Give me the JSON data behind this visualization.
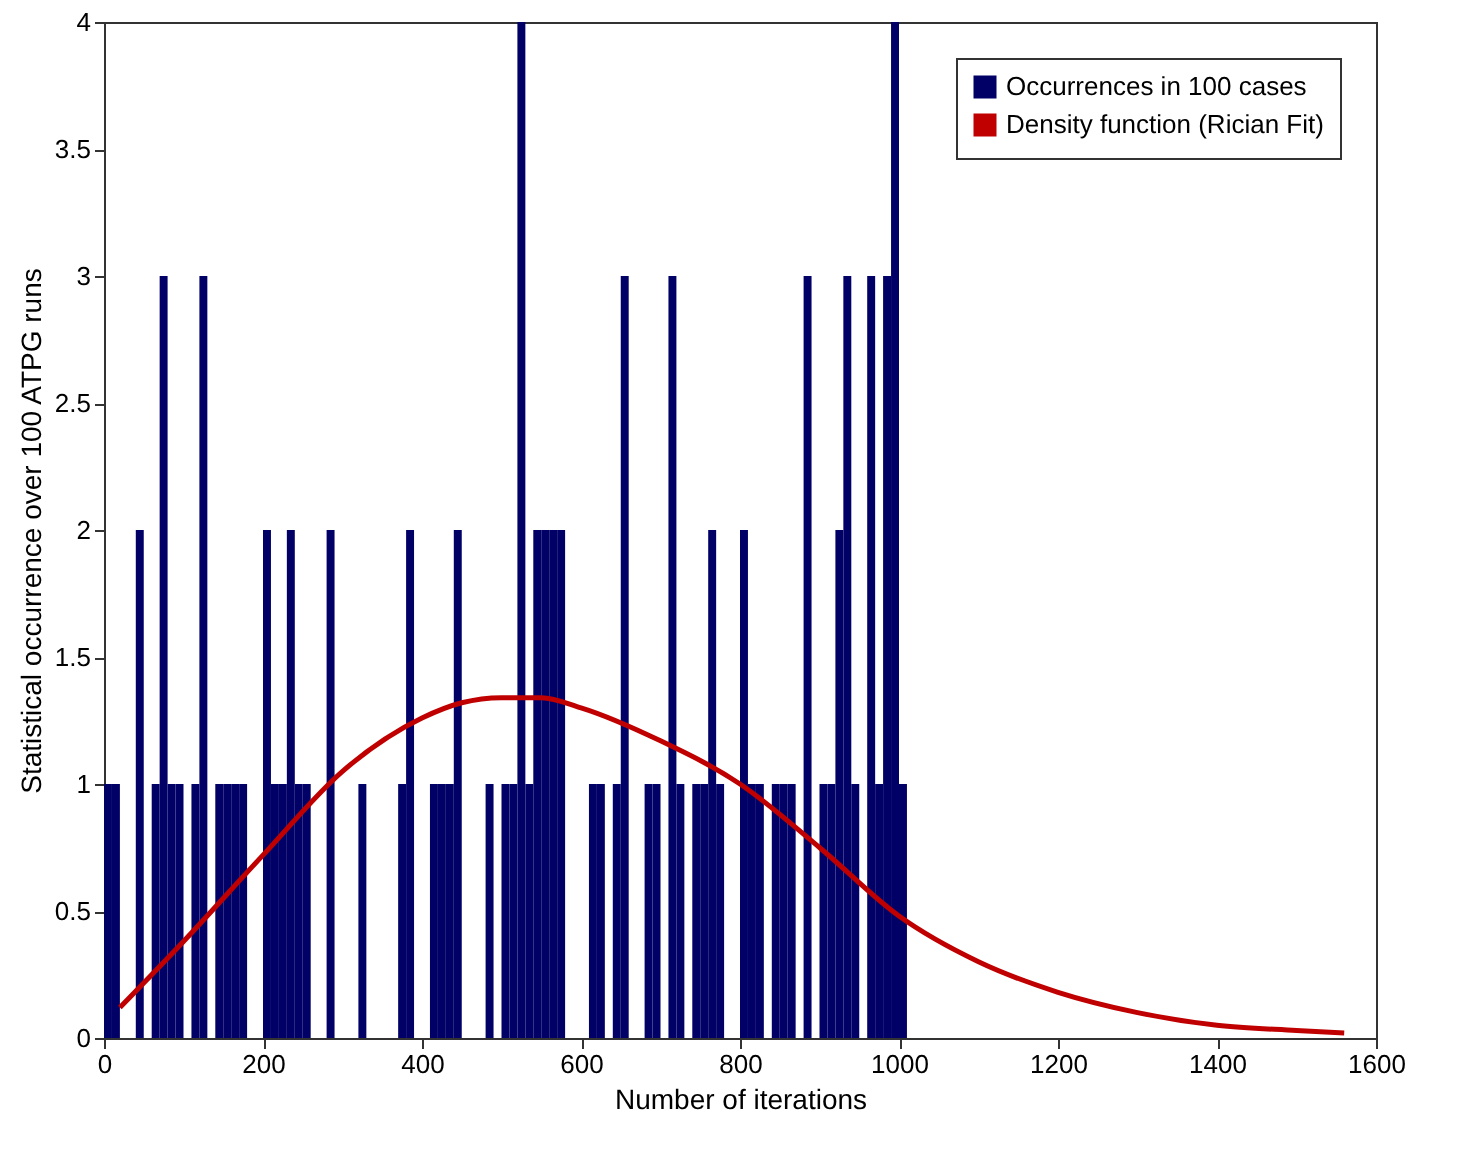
{
  "chart_data": {
    "type": "histogram",
    "xlabel": "Number of iterations",
    "ylabel": "Statistical occurrence over 100 ATPG runs",
    "xlim": [
      0,
      1600
    ],
    "xticks": [
      0,
      200,
      400,
      600,
      800,
      1000,
      1200,
      1400,
      1600
    ],
    "ylim": [
      0,
      4
    ],
    "yticks": [
      0,
      0.5,
      1,
      1.5,
      2,
      2.5,
      3,
      3.5,
      4
    ],
    "legend": "top right",
    "series": [
      {
        "type": "histogram",
        "name": "Occurrences in 100 cases",
        "color": "#000066",
        "bins": [
          0,
          10,
          20,
          30,
          40,
          50,
          60,
          70,
          80,
          90,
          100,
          110,
          120,
          130,
          140,
          150,
          160,
          170,
          180,
          190,
          200,
          210,
          220,
          230,
          240,
          250,
          260,
          270,
          280,
          290,
          300,
          310,
          320,
          330,
          340,
          350,
          360,
          370,
          380,
          390,
          400,
          410,
          420,
          430,
          440,
          450,
          460,
          470,
          480,
          490,
          500,
          510,
          520,
          530,
          540,
          550,
          560,
          570,
          580,
          590,
          600,
          610,
          620,
          630,
          640,
          650,
          660,
          670,
          680,
          690,
          700,
          710,
          720,
          730,
          740,
          750,
          760,
          770,
          780,
          790,
          800,
          810,
          820,
          830,
          840,
          850,
          860,
          870,
          880,
          890,
          900,
          910,
          920,
          930,
          940,
          950,
          960,
          970,
          980,
          990,
          1000,
          1010
        ],
        "values": [
          1,
          1,
          0,
          0,
          2,
          0,
          1,
          3,
          1,
          1,
          0,
          1,
          3,
          0,
          1,
          1,
          1,
          1,
          0,
          0,
          2,
          1,
          1,
          2,
          1,
          1,
          0,
          0,
          2,
          0,
          0,
          0,
          1,
          0,
          0,
          0,
          0,
          1,
          2,
          0,
          0,
          1,
          1,
          1,
          2,
          0,
          0,
          0,
          1,
          0,
          1,
          1,
          4,
          1,
          2,
          2,
          2,
          2,
          0,
          0,
          0,
          1,
          1,
          0,
          1,
          3,
          0,
          0,
          1,
          1,
          0,
          3,
          1,
          0,
          1,
          1,
          2,
          1,
          0,
          0,
          2,
          1,
          1,
          0,
          1,
          1,
          1,
          0,
          3,
          0,
          1,
          1,
          2,
          3,
          1,
          0,
          3,
          1,
          3,
          4,
          1
        ]
      },
      {
        "type": "line",
        "name": "Density function (Rician Fit)",
        "color": "#c00000",
        "x": [
          20,
          100,
          200,
          300,
          400,
          450,
          500,
          550,
          600,
          700,
          800,
          900,
          1000,
          1100,
          1200,
          1300,
          1400,
          1500,
          1560
        ],
        "values": [
          0.12,
          0.38,
          0.72,
          1.05,
          1.26,
          1.32,
          1.34,
          1.34,
          1.3,
          1.17,
          1.0,
          0.75,
          0.48,
          0.3,
          0.18,
          0.1,
          0.05,
          0.03,
          0.02
        ]
      }
    ]
  }
}
